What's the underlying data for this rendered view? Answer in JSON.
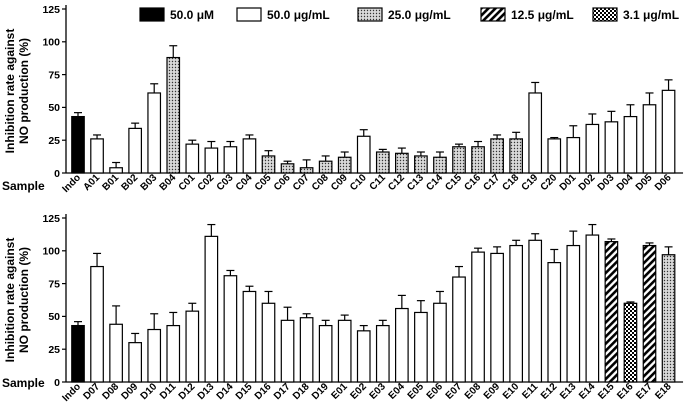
{
  "legend": [
    {
      "label": "50.0 μM",
      "pattern": "solid"
    },
    {
      "label": "50.0  μg/mL",
      "pattern": "open"
    },
    {
      "label": "25.0 μg/mL",
      "pattern": "dots"
    },
    {
      "label": "12.5 μg/mL",
      "pattern": "hatch"
    },
    {
      "label": "3.1 μg/mL",
      "pattern": "checker"
    }
  ],
  "colors": {
    "ink": "#000000",
    "dot_bg": "#d9d9d9"
  },
  "chart_data": [
    {
      "type": "bar",
      "ylabel_line1": "Inhibition rate against",
      "ylabel_line2": "NO production (%)",
      "xlabel": "Sample",
      "ylim": [
        0,
        125
      ],
      "yticks": [
        "0",
        "25",
        "50",
        "75",
        "100",
        "125"
      ],
      "categories": [
        "Indo",
        "A01",
        "B01",
        "B02",
        "B03",
        "B04",
        "C01",
        "C02",
        "C03",
        "C04",
        "C05",
        "C06",
        "C07",
        "C08",
        "C09",
        "C10",
        "C11",
        "C12",
        "C13",
        "C14",
        "C15",
        "C16",
        "C17",
        "C18",
        "C19",
        "C20",
        "D01",
        "D02",
        "D03",
        "D04",
        "D05",
        "D06"
      ],
      "values": [
        43,
        26,
        4,
        34,
        61,
        88,
        22,
        19,
        20,
        26,
        13,
        7,
        4,
        9,
        12,
        28,
        16,
        15,
        13,
        12,
        20,
        20,
        26,
        26,
        61,
        26,
        27,
        37,
        39,
        43,
        52,
        63
      ],
      "errors": [
        3,
        3,
        4,
        4,
        7,
        9,
        3,
        5,
        4,
        3,
        4,
        2,
        6,
        4,
        4,
        5,
        2,
        4,
        3,
        4,
        2,
        4,
        3,
        5,
        8,
        1,
        9,
        8,
        8,
        9,
        9,
        8
      ],
      "patterns": [
        "solid",
        "open",
        "open",
        "open",
        "open",
        "dots",
        "open",
        "open",
        "open",
        "open",
        "dots",
        "dots",
        "dots",
        "dots",
        "dots",
        "open",
        "dots",
        "dots",
        "dots",
        "dots",
        "dots",
        "dots",
        "dots",
        "dots",
        "open",
        "open",
        "open",
        "open",
        "open",
        "open",
        "open",
        "open"
      ]
    },
    {
      "type": "bar",
      "ylabel_line1": "Inhibition rate against",
      "ylabel_line2": "NO production (%)",
      "xlabel": "Sample",
      "ylim": [
        0,
        125
      ],
      "yticks": [
        "0",
        "25",
        "50",
        "75",
        "100",
        "125"
      ],
      "categories": [
        "Indo",
        "D07",
        "D08",
        "D09",
        "D10",
        "D11",
        "D12",
        "D13",
        "D14",
        "D15",
        "D16",
        "D17",
        "D18",
        "D19",
        "E01",
        "E02",
        "E03",
        "E04",
        "E05",
        "E06",
        "E07",
        "E08",
        "E09",
        "E10",
        "E11",
        "E12",
        "E13",
        "E14",
        "E15",
        "E16",
        "E17",
        "E18"
      ],
      "values": [
        43,
        88,
        44,
        30,
        40,
        43,
        54,
        111,
        81,
        69,
        60,
        47,
        49,
        43,
        47,
        39,
        43,
        56,
        53,
        60,
        80,
        99,
        98,
        104,
        108,
        91,
        104,
        112,
        107,
        60,
        104,
        97
      ],
      "errors": [
        3,
        10,
        14,
        7,
        12,
        10,
        6,
        9,
        4,
        4,
        9,
        10,
        3,
        4,
        4,
        4,
        4,
        10,
        9,
        9,
        8,
        3,
        5,
        4,
        5,
        10,
        11,
        8,
        2,
        1,
        2,
        6
      ],
      "patterns": [
        "solid",
        "open",
        "open",
        "open",
        "open",
        "open",
        "open",
        "open",
        "open",
        "open",
        "open",
        "open",
        "open",
        "open",
        "open",
        "open",
        "open",
        "open",
        "open",
        "open",
        "open",
        "open",
        "open",
        "open",
        "open",
        "open",
        "open",
        "open",
        "hatch",
        "checker",
        "hatch",
        "dots"
      ]
    }
  ]
}
